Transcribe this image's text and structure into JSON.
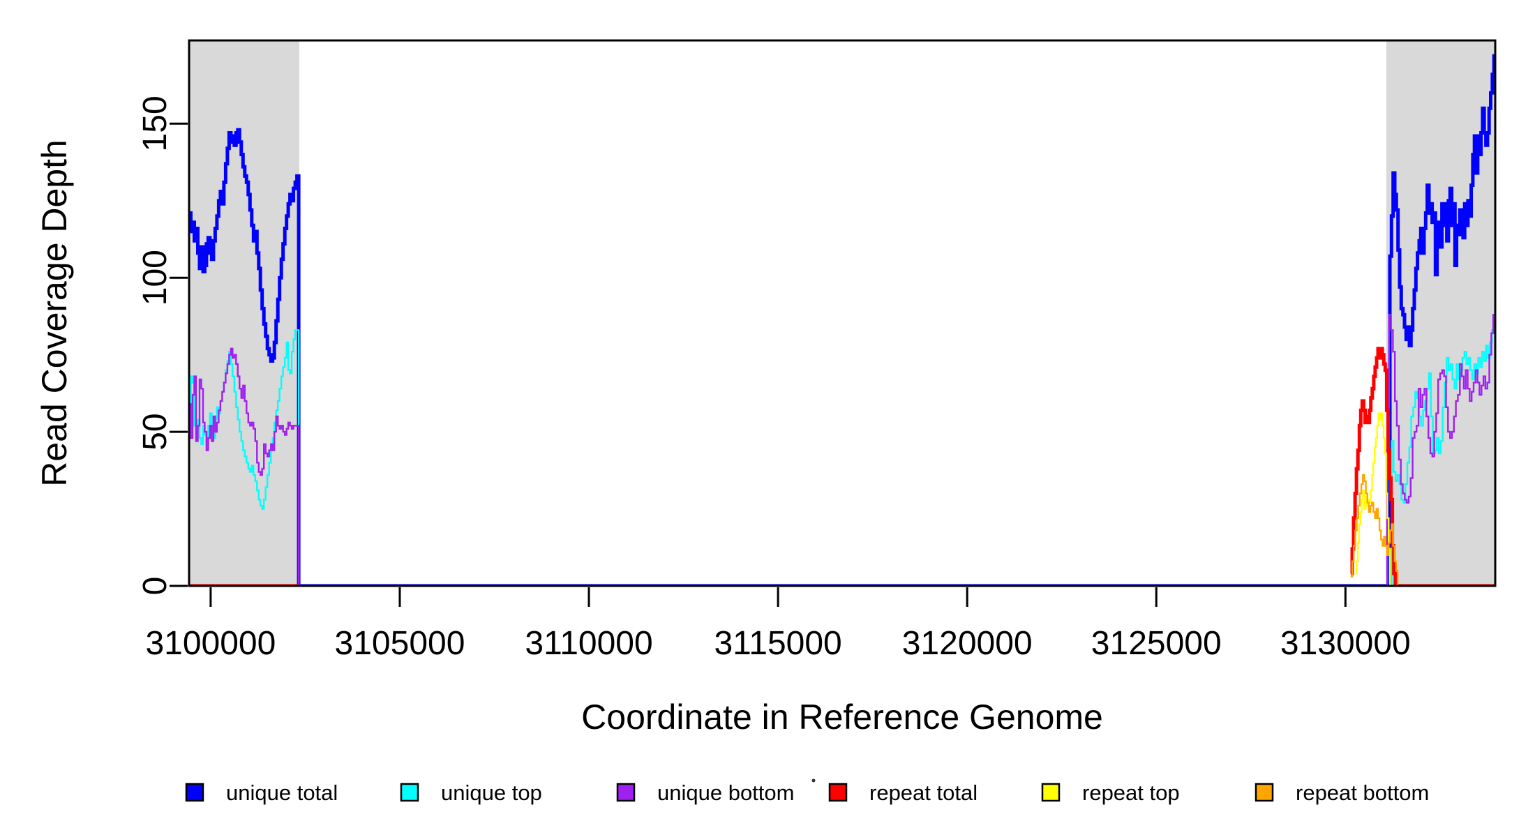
{
  "figure": {
    "background": "#FFFFFF",
    "stray_dot_color": "#333333"
  },
  "chart_data": {
    "type": "line",
    "subtype": "step-coverage",
    "title": "",
    "xlabel": "Coordinate in Reference Genome",
    "ylabel": "Read Coverage Depth",
    "xlim": [
      3099430,
      3133960
    ],
    "ylim": [
      0,
      177
    ],
    "x_ticks": [
      3100000,
      3105000,
      3110000,
      3115000,
      3120000,
      3125000,
      3130000
    ],
    "y_ticks": [
      0,
      50,
      100,
      150
    ],
    "grid": false,
    "box": true,
    "legend_position": "bottom",
    "highlight_regions": [
      {
        "label": "left-repeat-region",
        "x1": 3099430,
        "x2": 3102343,
        "color": "#D9D9D9"
      },
      {
        "label": "right-repeat-region",
        "x1": 3131080,
        "x2": 3133960,
        "color": "#D9D9D9"
      }
    ],
    "series": [
      {
        "name": "unique total",
        "color": "#0000FF",
        "lwd": 5,
        "segments": [
          {
            "runs": [
              {
                "x0": 3099430,
                "dx": 46,
                "values": [
                  121,
                  115,
                  118,
                  112,
                  116,
                  108,
                  103,
                  110,
                  102,
                  104,
                  111,
                  113,
                  108,
                  106,
                  112,
                  116,
                  120,
                  125,
                  128,
                  124,
                  131,
                  137,
                  142,
                  147,
                  144,
                  146,
                  143,
                  147,
                  148,
                  144,
                  140,
                  136,
                  133,
                  131,
                  127,
                  122,
                  117,
                  112,
                  115,
                  108,
                  103,
                  96,
                  90,
                  85,
                  81,
                  77,
                  75,
                  73,
                  74,
                  79,
                  86,
                  93,
                  100,
                  106,
                  111,
                  116,
                  120,
                  124,
                  127,
                  125,
                  129,
                  131,
                  133
                ]
              },
              {
                "x0": 3102328,
                "dx": 28847,
                "values": [
                  0
                ]
              },
              {
                "x0": 3131175,
                "dx": 43,
                "values": [
                  107,
                  120,
                  134,
                  127,
                  122,
                  109,
                  97,
                  90,
                  88,
                  84,
                  80,
                  84,
                  78,
                  83,
                  90,
                  96,
                  103,
                  108,
                  112,
                  116,
                  108,
                  116,
                  121,
                  130,
                  121,
                  124,
                  118,
                  121,
                  101,
                  118,
                  113,
                  110,
                  124,
                  117,
                  124,
                  112,
                  125,
                  129,
                  117,
                  124,
                  104,
                  117,
                  114,
                  122,
                  117,
                  113,
                  124,
                  117,
                  125,
                  120,
                  130,
                  140,
                  146,
                  134,
                  146,
                  140,
                  147,
                  155,
                  147,
                  143,
                  147,
                  155,
                  160,
                  166,
                  172
                ]
              }
            ],
            "xend": 3133960
          }
        ]
      },
      {
        "name": "unique top",
        "color": "#00FFFF",
        "lwd": 2.4,
        "segments": [
          {
            "runs": [
              {
                "x0": 3099430,
                "dx": 46,
                "values": [
                  58,
                  68,
                  66,
                  52,
                  50,
                  54,
                  48,
                  46,
                  52,
                  49,
                  47,
                  52,
                  56,
                  50,
                  48,
                  54,
                  58,
                  56,
                  60,
                  63,
                  66,
                  70,
                  73,
                  76,
                  72,
                  68,
                  63,
                  58,
                  54,
                  50,
                  47,
                  44,
                  42,
                  40,
                  38,
                  37,
                  39,
                  36,
                  34,
                  31,
                  28,
                  26,
                  25,
                  28,
                  32,
                  36,
                  40,
                  44,
                  48,
                  53,
                  57,
                  60,
                  64,
                  68,
                  71,
                  74,
                  79,
                  70,
                  69,
                  76,
                  80,
                  83,
                  83
                ]
              },
              {
                "x0": 3102328,
                "dx": 28892,
                "values": [
                  0
                ]
              },
              {
                "x0": 3131220,
                "dx": 52,
                "values": [
                  47,
                  37,
                  34,
                  36,
                  33,
                  28,
                  27,
                  33,
                  40,
                  45,
                  55,
                  58,
                  63,
                  61,
                  55,
                  52,
                  57,
                  60,
                  64,
                  69,
                  55,
                  43,
                  44,
                  48,
                  43,
                  47,
                  58,
                  66,
                  74,
                  70,
                  72,
                  67,
                  64,
                  72,
                  67,
                  70,
                  74,
                  76,
                  72,
                  74,
                  70,
                  67,
                  72,
                  69,
                  74,
                  71,
                  76,
                  73,
                  78,
                  74,
                  79,
                  83,
                  83
                ]
              }
            ],
            "xend": 3133960
          }
        ]
      },
      {
        "name": "unique bottom",
        "color": "#A020F0",
        "lwd": 2.4,
        "segments": [
          {
            "runs": [
              {
                "x0": 3099430,
                "dx": 46,
                "values": [
                  59,
                  48,
                  62,
                  68,
                  47,
                  52,
                  67,
                  64,
                  53,
                  50,
                  44,
                  48,
                  52,
                  47,
                  55,
                  50,
                  53,
                  57,
                  60,
                  63,
                  66,
                  69,
                  72,
                  75,
                  77,
                  74,
                  75,
                  72,
                  68,
                  64,
                  61,
                  65,
                  60,
                  56,
                  53,
                  52,
                  53,
                  51,
                  47,
                  40,
                  37,
                  36,
                  38,
                  46,
                  43,
                  42,
                  44,
                  46,
                  44,
                  50,
                  55,
                  52,
                  51,
                  52,
                  50,
                  49,
                  51,
                  53,
                  52,
                  51,
                  52,
                  52,
                  52
                ]
              },
              {
                "x0": 3102328,
                "dx": 28772,
                "values": [
                  0
                ]
              },
              {
                "x0": 3131100,
                "dx": 52,
                "values": [
                  44,
                  88,
                  83,
                  76,
                  60,
                  52,
                  41,
                  33,
                  30,
                  28,
                  27,
                  29,
                  35,
                  48,
                  50,
                  52,
                  64,
                  58,
                  62,
                  64,
                  55,
                  48,
                  43,
                  42,
                  50,
                  56,
                  67,
                  69,
                  70,
                  68,
                  58,
                  50,
                  48,
                  50,
                  55,
                  60,
                  62,
                  72,
                  68,
                  64,
                  70,
                  64,
                  60,
                  63,
                  66,
                  70,
                  66,
                  62,
                  65,
                  68,
                  64,
                  66,
                  75,
                  82,
                  88
                ]
              }
            ],
            "xend": 3133960
          }
        ]
      },
      {
        "name": "repeat total",
        "color": "#FF0000",
        "lwd": 5,
        "segments": [
          {
            "runs": [
              {
                "x0": 3099430,
                "dx": 2913,
                "values": [
                  0
                ]
              }
            ]
          },
          {
            "runs": [
              {
                "x0": 3130140,
                "dx": 38,
                "values": [
                  4,
                  12,
                  22,
                  30,
                  38,
                  44,
                  52,
                  57,
                  60,
                  57,
                  53,
                  55,
                  53,
                  57,
                  61,
                  64,
                  68,
                  71,
                  74,
                  77,
                  74,
                  77,
                  75,
                  72,
                  70,
                  57,
                  44,
                  35,
                  28,
                  13,
                  4,
                  0
                ]
              }
            ],
            "xend": 3133960
          }
        ]
      },
      {
        "name": "repeat top",
        "color": "#FFFF00",
        "lwd": 2.4,
        "segments": [
          {
            "runs": [
              {
                "x0": 3099430,
                "dx": 2913,
                "values": [
                  0
                ]
              }
            ]
          },
          {
            "runs": [
              {
                "x0": 3130260,
                "dx": 34,
                "values": [
                  4,
                  8,
                  14,
                  20,
                  24,
                  28,
                  31,
                  25,
                  29,
                  26,
                  28,
                  27,
                  31,
                  36,
                  40,
                  45,
                  48,
                  52,
                  56,
                  54,
                  56,
                  52,
                  48,
                  43,
                  30,
                  22,
                  12,
                  0
                ]
              }
            ],
            "xend": 3133960
          }
        ]
      },
      {
        "name": "repeat bottom",
        "color": "#FFA500",
        "lwd": 2.4,
        "segments": [
          {
            "runs": [
              {
                "x0": 3099430,
                "dx": 2913,
                "values": [
                  0
                ]
              }
            ]
          },
          {
            "runs": [
              {
                "x0": 3130140,
                "dx": 40,
                "values": [
                  3,
                  8,
                  13,
                  18,
                  22,
                  26,
                  30,
                  33,
                  36,
                  34,
                  30,
                  27,
                  24,
                  26,
                  27,
                  24,
                  22,
                  25,
                  22,
                  18,
                  15,
                  13,
                  16,
                  13,
                  10,
                  14,
                  18,
                  20,
                  13,
                  8,
                  5,
                  0
                ]
              }
            ],
            "xend": 3133960
          }
        ]
      }
    ]
  },
  "legend": {
    "items": [
      {
        "label": "unique total",
        "color": "#0000FF"
      },
      {
        "label": "unique top",
        "color": "#00FFFF"
      },
      {
        "label": "unique bottom",
        "color": "#A020F0"
      },
      {
        "label": "repeat total",
        "color": "#FF0000"
      },
      {
        "label": "repeat top",
        "color": "#FFFF00"
      },
      {
        "label": "repeat bottom",
        "color": "#FFA500"
      }
    ]
  }
}
